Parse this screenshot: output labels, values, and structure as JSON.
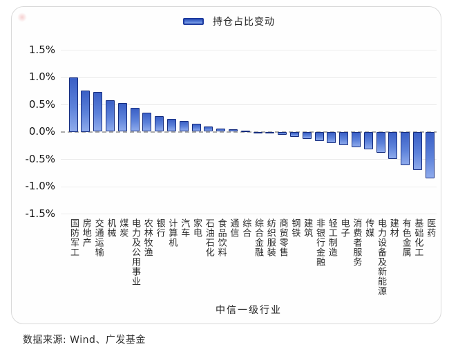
{
  "legend": {
    "label": "持仓占比变动"
  },
  "footer": {
    "source": "数据来源: Wind、广发基金"
  },
  "colors": {
    "bar_top": "#3a5fc5",
    "bar_bottom": "#8fabec",
    "bar_border": "#162d7e",
    "gridline": "#ebebeb",
    "zero_line": "#ababab"
  },
  "chart_data": {
    "type": "bar",
    "title": "",
    "series_name": "持仓占比变动",
    "categories": [
      "国防军工",
      "房地产",
      "交通运输",
      "机械",
      "煤炭",
      "电力及公用事业",
      "农林牧渔",
      "银行",
      "计算机",
      "汽车",
      "家电",
      "石油石化",
      "食品饮料",
      "通信",
      "综合",
      "综合金融",
      "纺织服装",
      "商贸零售",
      "钢铁",
      "建筑",
      "非银行金融",
      "轻工制造",
      "电子",
      "消费者服务",
      "传媒",
      "电力设备及新能源",
      "建材",
      "有色金属",
      "基础化工",
      "医药"
    ],
    "values": [
      1.0,
      0.75,
      0.73,
      0.58,
      0.52,
      0.44,
      0.35,
      0.29,
      0.24,
      0.19,
      0.14,
      0.09,
      0.06,
      0.04,
      0.02,
      -0.01,
      -0.03,
      -0.06,
      -0.09,
      -0.13,
      -0.17,
      -0.21,
      -0.25,
      -0.28,
      -0.32,
      -0.38,
      -0.5,
      -0.62,
      -0.7,
      -0.85
    ],
    "unit": "%",
    "xlabel": "中信一级行业",
    "ylabel": "",
    "ylim": [
      -1.5,
      1.5
    ],
    "ytick_values": [
      1.5,
      1.0,
      0.5,
      0.0,
      -0.5,
      -1.0,
      -1.5
    ],
    "ytick_labels": [
      "1.5%",
      "1.0%",
      "0.5%",
      "0.0%",
      "-0.5%",
      "-1.0%",
      "-1.5%"
    ],
    "grid": true,
    "legend_position": "top"
  }
}
